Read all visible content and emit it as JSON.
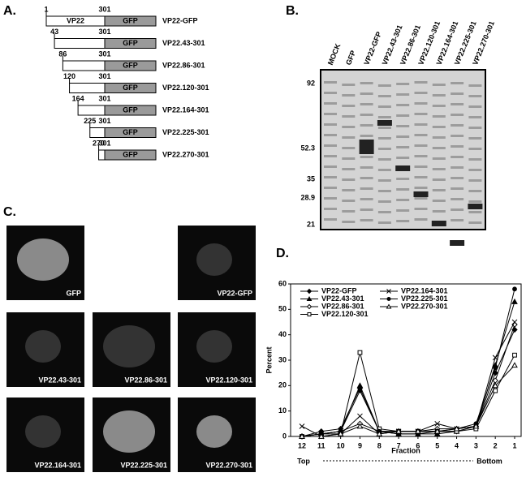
{
  "panel_a": {
    "label": "A.",
    "head_label": "VP22",
    "gfp_label": "GFP",
    "constructs": [
      {
        "name": "VP22-GFP",
        "start": 1,
        "end": 301
      },
      {
        "name": "VP22.43-301",
        "start": 43,
        "end": 301
      },
      {
        "name": "VP22.86-301",
        "start": 86,
        "end": 301
      },
      {
        "name": "VP22.120-301",
        "start": 120,
        "end": 301
      },
      {
        "name": "VP22.164-301",
        "start": 164,
        "end": 301
      },
      {
        "name": "VP22.225-301",
        "start": 225,
        "end": 301
      },
      {
        "name": "VP22.270-301",
        "start": 270,
        "end": 301
      }
    ]
  },
  "panel_b": {
    "label": "B.",
    "lanes": [
      "MOCK",
      "GFP",
      "VP22-GFP",
      "VP22.43-301",
      "VP22.86-301",
      "VP22.120-301",
      "VP22.164-301",
      "VP22.225-301",
      "VP22.270-301"
    ],
    "markers": [
      92,
      52.3,
      35,
      28.9,
      21
    ]
  },
  "panel_c": {
    "label": "C.",
    "images": [
      "GFP",
      "VP22-GFP",
      "VP22.43-301",
      "VP22.86-301",
      "VP22.120-301",
      "VP22.164-301",
      "VP22.225-301",
      "VP22.270-301"
    ]
  },
  "chart_data": {
    "type": "line",
    "label": "D.",
    "y_label": "Percent",
    "x_label": "Fraction",
    "left_note": "Top",
    "right_note": "Bottom",
    "categories": [
      "12",
      "11",
      "10",
      "9",
      "8",
      "7",
      "6",
      "5",
      "4",
      "3",
      "2",
      "1"
    ],
    "ylim": [
      0,
      60
    ],
    "yticks": [
      0,
      10,
      20,
      30,
      40,
      50,
      60
    ],
    "series": [
      {
        "name": "VP22-GFP",
        "color": "#000",
        "marker": "diamond",
        "values": [
          0,
          2,
          3,
          19,
          2,
          1,
          1,
          2,
          2,
          4,
          25,
          42
        ]
      },
      {
        "name": "VP22.43-301",
        "color": "#000",
        "marker": "triangle",
        "values": [
          0,
          1,
          2,
          20,
          2,
          1,
          1,
          1,
          2,
          4,
          28,
          53
        ]
      },
      {
        "name": "VP22.86-301",
        "color": "#000",
        "marker": "open-diamond",
        "values": [
          0,
          1,
          2,
          5,
          2,
          2,
          2,
          3,
          3,
          4,
          22,
          44
        ]
      },
      {
        "name": "VP22.120-301",
        "color": "#000",
        "marker": "open-square",
        "values": [
          0,
          1,
          1,
          33,
          3,
          2,
          2,
          2,
          2,
          3,
          18,
          32
        ]
      },
      {
        "name": "VP22.164-301",
        "color": "#000",
        "marker": "x",
        "values": [
          4,
          0,
          1,
          8,
          1,
          2,
          2,
          5,
          3,
          4,
          31,
          45
        ]
      },
      {
        "name": "VP22.225-301",
        "color": "#000",
        "marker": "circle",
        "values": [
          0,
          1,
          2,
          18,
          2,
          2,
          2,
          2,
          3,
          5,
          27,
          58
        ]
      },
      {
        "name": "VP22.270-301",
        "color": "#000",
        "marker": "open-triangle",
        "values": [
          0,
          0,
          1,
          4,
          1,
          2,
          2,
          2,
          3,
          4,
          20,
          28
        ]
      }
    ]
  }
}
